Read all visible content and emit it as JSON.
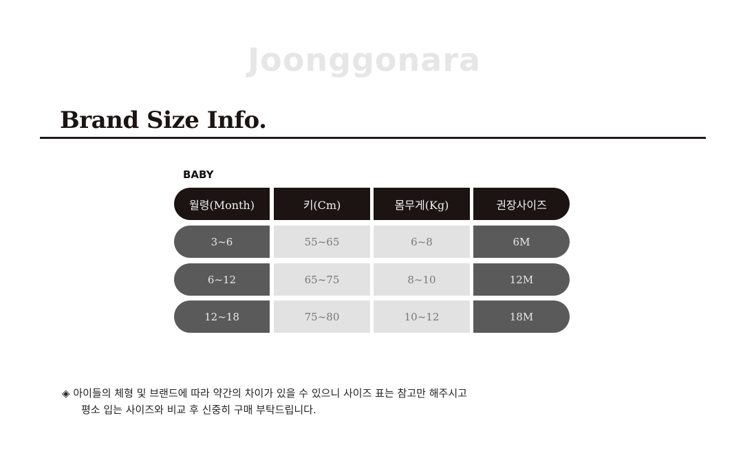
{
  "title": "Brand Size Info.",
  "section": "BABY",
  "table": {
    "headers": [
      "월령(Month)",
      "키(Cm)",
      "몸무게(Kg)",
      "권장사이즈"
    ],
    "rows": [
      [
        "3~6",
        "55~65",
        "6~8",
        "6M"
      ],
      [
        "6~12",
        "65~75",
        "8~10",
        "12M"
      ],
      [
        "12~18",
        "75~80",
        "10~12",
        "18M"
      ]
    ]
  },
  "watermark": "Joonggonara",
  "note": {
    "bullet": "◈",
    "line1": "아이들의 체형 및 브랜드에 따라 약간의 차이가 있을 수 있으니 사이즈 표는 참고만 해주시고",
    "line2": "평소 입는 사이즈와 비교 후 신중히 구매 부탁드립니다."
  },
  "colors": {
    "header": "#1c1412",
    "dark_cell": "#5a5a5a",
    "light_cell": "#e2e2e2"
  }
}
